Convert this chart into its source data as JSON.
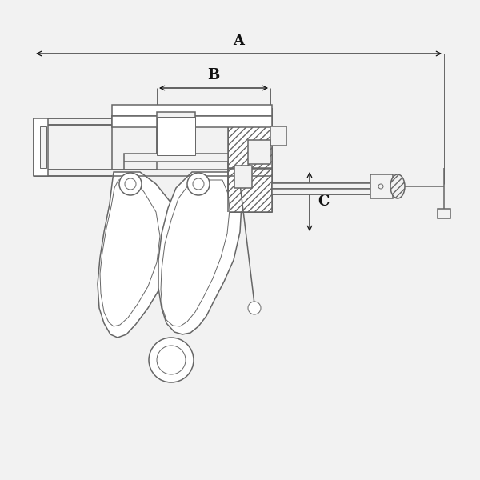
{
  "bg_color": "#f2f2f2",
  "line_color": "#666666",
  "dark_color": "#111111",
  "dim_A_label": "A",
  "dim_B_label": "B",
  "dim_C_label": "C",
  "fig_width": 6.0,
  "fig_height": 6.0
}
